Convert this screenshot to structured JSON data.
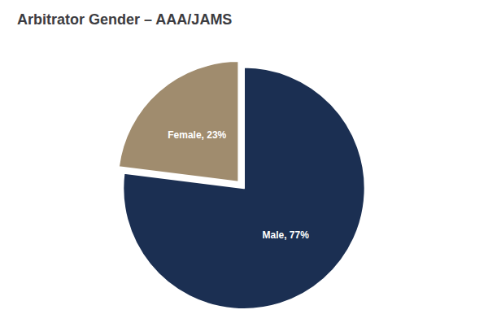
{
  "chart_data": {
    "type": "pie",
    "title": "Arbitrator Gender – AAA/JAMS",
    "values": [
      77,
      23
    ],
    "value_labels": [
      "Male, 77%",
      "Female, 23%"
    ],
    "colors": [
      "#1b2f52",
      "#a08c6e"
    ],
    "data_labels": true
  }
}
